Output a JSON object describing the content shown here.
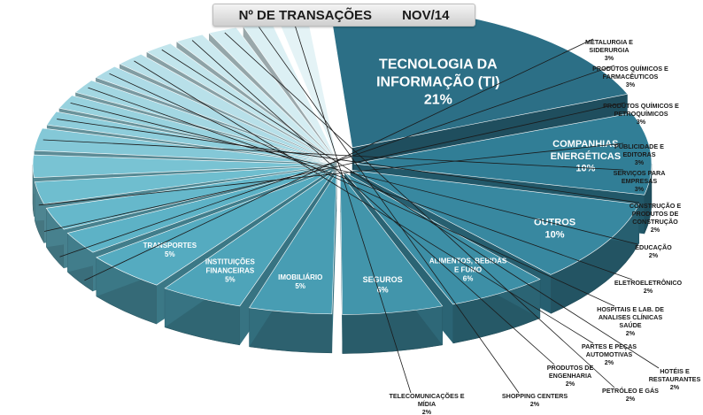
{
  "chart_data": {
    "type": "pie",
    "title": "Nº DE TRANSAÇÕES",
    "period": "NOV/14",
    "slices": [
      {
        "label": "TECNOLOGIA DA INFORMAÇÃO (TI)",
        "value": 21,
        "value_label": "21%",
        "color": "#2c6f86"
      },
      {
        "label": "COMPANHIAS ENERGÉTICAS",
        "value": 10,
        "value_label": "10%",
        "color": "#317e96"
      },
      {
        "label": "OUTROS",
        "value": 10,
        "value_label": "10%",
        "color": "#3888a0"
      },
      {
        "label": "ALIMENTOS, BEBIDAS E FUMO",
        "value": 6,
        "value_label": "6%",
        "color": "#3d8fa6"
      },
      {
        "label": "SEGUROS",
        "value": 6,
        "value_label": "6%",
        "color": "#4295ab"
      },
      {
        "label": "IMOBILIÁRIO",
        "value": 5,
        "value_label": "5%",
        "color": "#489db3"
      },
      {
        "label": "INSTITUIÇÕES FINANCEIRAS",
        "value": 5,
        "value_label": "5%",
        "color": "#4ea4b9"
      },
      {
        "label": "TRANSPORTES",
        "value": 5,
        "value_label": "5%",
        "color": "#55abc0"
      },
      {
        "label": "METALURGIA E SIDERURGIA",
        "value": 3,
        "value_label": "3%",
        "color": "#5db2c6"
      },
      {
        "label": "PRODUTOS QUÍMICOS E FARMACÊUTICOS",
        "value": 3,
        "value_label": "3%",
        "color": "#66b8cb"
      },
      {
        "label": "PRODUTOS QUÍMICOS E PETROQUÍMICOS",
        "value": 3,
        "value_label": "3%",
        "color": "#6fbecf"
      },
      {
        "label": "PUBLICIDADE E EDITORAS",
        "value": 3,
        "value_label": "3%",
        "color": "#79c3d3"
      },
      {
        "label": "SERVIÇOS PARA EMPRESAS",
        "value": 3,
        "value_label": "3%",
        "color": "#84c8d7"
      },
      {
        "label": "CONSTRUÇÃO E PRODUTOS DE CONSTRUÇÃO",
        "value": 2,
        "value_label": "2%",
        "color": "#8ecddb"
      },
      {
        "label": "EDUCAÇÃO",
        "value": 2,
        "value_label": "2%",
        "color": "#98d2de"
      },
      {
        "label": "ELETROELETRÔNICO",
        "value": 2,
        "value_label": "2%",
        "color": "#a3d7e2"
      },
      {
        "label": "HOSPITAIS E LAB. DE ANALISES CLÍNICAS SAÚDE",
        "value": 2,
        "value_label": "2%",
        "color": "#addbe6"
      },
      {
        "label": "PARTES E PEÇAS AUTOMOTIVAS",
        "value": 2,
        "value_label": "2%",
        "color": "#b8e0e9"
      },
      {
        "label": "HOTÉIS E RESTAURANTES",
        "value": 2,
        "value_label": "2%",
        "color": "#c2e5ec"
      },
      {
        "label": "PRODUTOS DE ENGENHARIA",
        "value": 2,
        "value_label": "2%",
        "color": "#cbe9ef"
      },
      {
        "label": "PETRÓLEO E GÁS",
        "value": 2,
        "value_label": "2%",
        "color": "#d4edf2"
      },
      {
        "label": "SHOPPING CENTERS",
        "value": 2,
        "value_label": "2%",
        "color": "#dcf0f4"
      },
      {
        "label": "TELECOMUNICAÇÕES E MÍDIA",
        "value": 2,
        "value_label": "2%",
        "color": "#e4f3f6"
      }
    ],
    "legend": "none",
    "style": "3d-exploded"
  }
}
